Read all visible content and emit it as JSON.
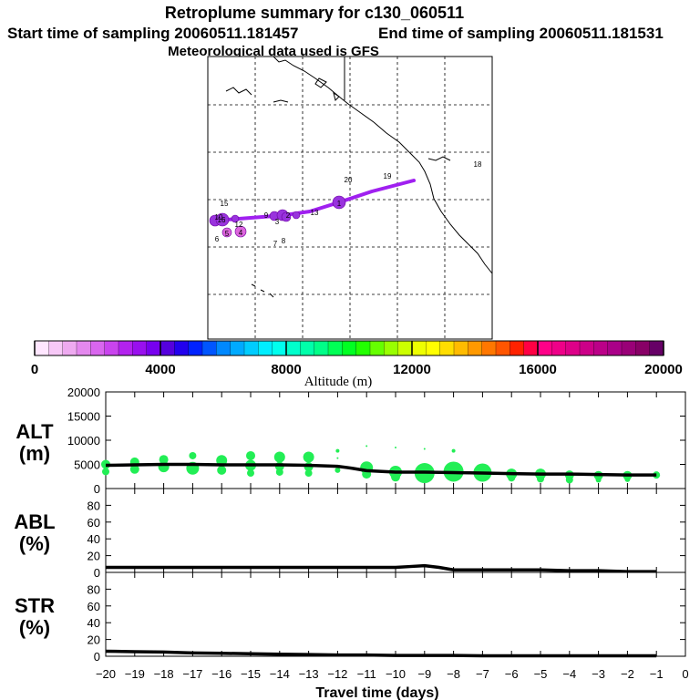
{
  "header": {
    "title": "Retroplume summary for c130_060511",
    "start_label": "Start time of sampling 20060511.181457",
    "end_label": "End time of sampling 20060511.181531",
    "met_label": "Meteorological data used is GFS"
  },
  "map": {
    "track_color": "#a020f0",
    "day_labels": [
      {
        "text": "1",
        "color": "#000000"
      },
      {
        "text": "2",
        "color": "#000000"
      },
      {
        "text": "3",
        "color": "#000000"
      },
      {
        "text": "4",
        "color": "#000000"
      },
      {
        "text": "5",
        "color": "#000000"
      },
      {
        "text": "6",
        "color": "#000000"
      },
      {
        "text": "7",
        "color": "#000000"
      },
      {
        "text": "8",
        "color": "#000000"
      },
      {
        "text": "9",
        "color": "#000000"
      },
      {
        "text": "10",
        "color": "#000000"
      },
      {
        "text": "12",
        "color": "#000000"
      },
      {
        "text": "13",
        "color": "#000000"
      },
      {
        "text": "15",
        "color": "#000000"
      },
      {
        "text": "16",
        "color": "#000000"
      },
      {
        "text": "18",
        "color": "#000000"
      },
      {
        "text": "19",
        "color": "#000000"
      },
      {
        "text": "20",
        "color": "#000000"
      }
    ]
  },
  "colorbar": {
    "label": "Altitude (m)",
    "min": 0,
    "max": 20000,
    "tick_labels": [
      "0",
      "4000",
      "8000",
      "12000",
      "16000",
      "20000"
    ],
    "colors": [
      "#ffe6ff",
      "#f7c8f7",
      "#eeaaf0",
      "#e488ee",
      "#d966ee",
      "#c944ee",
      "#b322ee",
      "#9910ee",
      "#7700ee",
      "#5500dd",
      "#2200ee",
      "#0022ff",
      "#0055ff",
      "#0088ff",
      "#00aaff",
      "#00ccff",
      "#00eeff",
      "#00ffee",
      "#00ffcc",
      "#00ffaa",
      "#00ff88",
      "#00ff55",
      "#00ff22",
      "#22ff00",
      "#66ff00",
      "#99ff00",
      "#ccff00",
      "#eeff00",
      "#ffff00",
      "#ffdd00",
      "#ffbb00",
      "#ff9900",
      "#ff7700",
      "#ff5500",
      "#ff2200",
      "#ff0044",
      "#ff0088",
      "#ee0088",
      "#dd0088",
      "#cc0088",
      "#bb0088",
      "#aa0088",
      "#990077",
      "#880066",
      "#660066"
    ]
  },
  "chart_data": [
    {
      "type": "scatter",
      "name": "ALT",
      "ylabel": "ALT\n(m)",
      "ylabel_line1": "ALT",
      "ylabel_line2": "(m)",
      "ylim": [
        0,
        20000
      ],
      "yticks": [
        "0",
        "5000",
        "10000",
        "15000",
        "20000"
      ],
      "xlim": [
        -20,
        0
      ],
      "mean_line": {
        "x": [
          -20,
          -19,
          -18,
          -17,
          -16,
          -15,
          -14,
          -13,
          -12,
          -11.5,
          -11,
          -10,
          -9,
          -8,
          -7,
          -6,
          -5,
          -4,
          -3,
          -2,
          -1
        ],
        "y": [
          4800,
          4900,
          5000,
          5000,
          4900,
          4900,
          4900,
          4800,
          4600,
          4200,
          3700,
          3400,
          3400,
          3300,
          3200,
          3100,
          3000,
          3000,
          2900,
          2800,
          2800
        ]
      },
      "points_color": "#22ee55",
      "points": [
        {
          "x": -20,
          "y": 5000,
          "r": 5
        },
        {
          "x": -20,
          "y": 3500,
          "r": 4
        },
        {
          "x": -19,
          "y": 5500,
          "r": 5
        },
        {
          "x": -19,
          "y": 4000,
          "r": 5
        },
        {
          "x": -18,
          "y": 6000,
          "r": 5
        },
        {
          "x": -18,
          "y": 4500,
          "r": 6
        },
        {
          "x": -17,
          "y": 6800,
          "r": 4
        },
        {
          "x": -17,
          "y": 4200,
          "r": 7
        },
        {
          "x": -16,
          "y": 5800,
          "r": 6
        },
        {
          "x": -16,
          "y": 3800,
          "r": 5
        },
        {
          "x": -15,
          "y": 6800,
          "r": 5
        },
        {
          "x": -15,
          "y": 4800,
          "r": 6
        },
        {
          "x": -15,
          "y": 3200,
          "r": 4
        },
        {
          "x": -14,
          "y": 6500,
          "r": 6
        },
        {
          "x": -14,
          "y": 4600,
          "r": 5
        },
        {
          "x": -14,
          "y": 3400,
          "r": 4
        },
        {
          "x": -13,
          "y": 6500,
          "r": 6
        },
        {
          "x": -13,
          "y": 4500,
          "r": 5
        },
        {
          "x": -13,
          "y": 3200,
          "r": 4
        },
        {
          "x": -12,
          "y": 7800,
          "r": 2
        },
        {
          "x": -12,
          "y": 6300,
          "r": 1
        },
        {
          "x": -12,
          "y": 3800,
          "r": 3
        },
        {
          "x": -11,
          "y": 8800,
          "r": 1
        },
        {
          "x": -11,
          "y": 4300,
          "r": 7
        },
        {
          "x": -11,
          "y": 3000,
          "r": 5
        },
        {
          "x": -10,
          "y": 8500,
          "r": 1
        },
        {
          "x": -10,
          "y": 3400,
          "r": 7
        },
        {
          "x": -10,
          "y": 2400,
          "r": 5
        },
        {
          "x": -9,
          "y": 8200,
          "r": 1
        },
        {
          "x": -9,
          "y": 3200,
          "r": 11
        },
        {
          "x": -8,
          "y": 7800,
          "r": 2
        },
        {
          "x": -8,
          "y": 3500,
          "r": 11
        },
        {
          "x": -7,
          "y": 3300,
          "r": 10
        },
        {
          "x": -6,
          "y": 3000,
          "r": 6
        },
        {
          "x": -6,
          "y": 2200,
          "r": 4
        },
        {
          "x": -5,
          "y": 3000,
          "r": 6
        },
        {
          "x": -5,
          "y": 2000,
          "r": 4
        },
        {
          "x": -4,
          "y": 2800,
          "r": 5
        },
        {
          "x": -4,
          "y": 1800,
          "r": 4
        },
        {
          "x": -3,
          "y": 2700,
          "r": 5
        },
        {
          "x": -3,
          "y": 1800,
          "r": 3
        },
        {
          "x": -2,
          "y": 2700,
          "r": 5
        },
        {
          "x": -2,
          "y": 1900,
          "r": 3
        },
        {
          "x": -1,
          "y": 2800,
          "r": 4
        }
      ]
    },
    {
      "type": "line",
      "name": "ABL",
      "ylabel_line1": "ABL",
      "ylabel_line2": "(%)",
      "ylim": [
        0,
        100
      ],
      "yticks": [
        "0",
        "20",
        "40",
        "60",
        "80"
      ],
      "xlim": [
        -20,
        0
      ],
      "x": [
        -20,
        -19,
        -18,
        -17,
        -16,
        -15,
        -14,
        -13,
        -12,
        -11,
        -10,
        -9.5,
        -9,
        -8.5,
        -8,
        -7,
        -6,
        -5,
        -4,
        -3,
        -2,
        -1
      ],
      "y": [
        6,
        6,
        6,
        6,
        6,
        6,
        6,
        6,
        6,
        6,
        6,
        7,
        8,
        6,
        3,
        3,
        3,
        3,
        2,
        2,
        1,
        1
      ]
    },
    {
      "type": "line",
      "name": "STR",
      "ylabel_line1": "STR",
      "ylabel_line2": "(%)",
      "ylim": [
        0,
        100
      ],
      "yticks": [
        "0",
        "20",
        "40",
        "60",
        "80"
      ],
      "xlim": [
        -20,
        0
      ],
      "xticks": [
        "−20",
        "−19",
        "−18",
        "−17",
        "−16",
        "−15",
        "−14",
        "−13",
        "−12",
        "−11",
        "−10",
        "−9",
        "−8",
        "−7",
        "−6",
        "−5",
        "−4",
        "−3",
        "−2",
        "−1",
        "0"
      ],
      "xlabel": "Travel time (days)",
      "x": [
        -20,
        -19,
        -18,
        -17,
        -16,
        -15,
        -14,
        -13,
        -12,
        -11,
        -10,
        -9,
        -8,
        -7,
        -6,
        -5,
        -4,
        -3,
        -2,
        -1
      ],
      "y": [
        6,
        5.5,
        5,
        4,
        3.5,
        3,
        2.5,
        2,
        1.5,
        1.5,
        1,
        1,
        1,
        0.5,
        0.5,
        0.5,
        0.5,
        0.5,
        0.5,
        0.5
      ]
    }
  ]
}
